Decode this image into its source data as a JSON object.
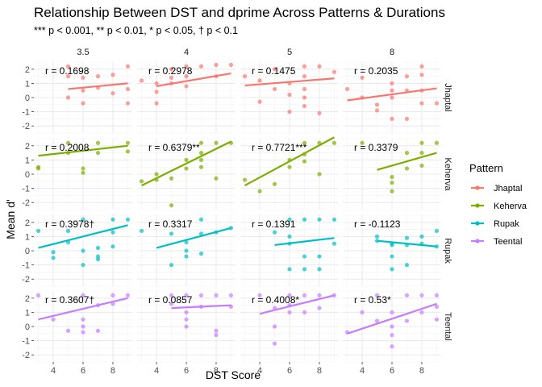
{
  "chart_data": {
    "type": "scatter",
    "title": "Relationship Between DST and dprime Across Patterns & Durations",
    "subtitle": "*** p < 0.001, ** p < 0.01, * p < 0.05, † p < 0.1",
    "xlabel": "DST Score",
    "ylabel": "Mean d'",
    "xlim": [
      2.7,
      9.3
    ],
    "ylim": [
      -2.5,
      2.5
    ],
    "x_ticks": [
      4,
      6,
      8
    ],
    "y_ticks": [
      -2,
      -1,
      0,
      1,
      2
    ],
    "columns": [
      "3.5",
      "4",
      "5",
      "8"
    ],
    "rows": [
      "Jhaptal",
      "Keherva",
      "Rupak",
      "Teental"
    ],
    "legend": {
      "title": "Pattern",
      "position": "right",
      "entries": [
        "Jhaptal",
        "Keherva",
        "Rupak",
        "Teental"
      ]
    },
    "colors": {
      "Jhaptal": "#F8766D",
      "Keherva": "#7CAE00",
      "Rupak": "#00BFC4",
      "Teental": "#C77CFF"
    },
    "panels": [
      {
        "row": "Jhaptal",
        "col": "3.5",
        "r_label": "r = 0.1698",
        "line": [
          [
            5,
            0.6
          ],
          [
            9,
            1.0
          ]
        ],
        "points": [
          [
            5,
            1.5
          ],
          [
            5,
            0.0
          ],
          [
            6,
            0.5
          ],
          [
            6,
            1.4
          ],
          [
            6,
            -0.4
          ],
          [
            7,
            1.5
          ],
          [
            7,
            0.7
          ],
          [
            8,
            1.6
          ],
          [
            8,
            0.3
          ],
          [
            9,
            2.2
          ],
          [
            9,
            0.6
          ],
          [
            9,
            -0.4
          ],
          [
            5,
            2.2
          ]
        ]
      },
      {
        "row": "Jhaptal",
        "col": "4",
        "r_label": "r = 0.2978",
        "line": [
          [
            4,
            0.8
          ],
          [
            9,
            1.7
          ]
        ],
        "points": [
          [
            3,
            1.2
          ],
          [
            4,
            1.0
          ],
          [
            4,
            0.4
          ],
          [
            4,
            -0.4
          ],
          [
            5,
            1.0
          ],
          [
            5,
            2.0
          ],
          [
            6,
            1.5
          ],
          [
            6,
            0.8
          ],
          [
            6,
            2.2
          ],
          [
            7,
            2.2
          ],
          [
            8,
            2.3
          ],
          [
            8,
            1.5
          ],
          [
            9,
            2.3
          ],
          [
            5,
            1.4
          ]
        ]
      },
      {
        "row": "Jhaptal",
        "col": "5",
        "r_label": "r = 0.1475",
        "line": [
          [
            3,
            0.85
          ],
          [
            9,
            1.35
          ]
        ],
        "points": [
          [
            3,
            1.5
          ],
          [
            4,
            1.2
          ],
          [
            4,
            -0.3
          ],
          [
            5,
            2.0
          ],
          [
            5,
            0.6
          ],
          [
            6,
            1.0
          ],
          [
            6,
            0.2
          ],
          [
            6,
            -1.0
          ],
          [
            7,
            0.6
          ],
          [
            7,
            1.5
          ],
          [
            7,
            0.0
          ],
          [
            7,
            -0.6
          ],
          [
            8,
            2.2
          ],
          [
            8,
            -1.1
          ],
          [
            9,
            1.8
          ],
          [
            7,
            2.2
          ]
        ]
      },
      {
        "row": "Jhaptal",
        "col": "8",
        "r_label": "r = 0.2035",
        "line": [
          [
            3,
            -0.2
          ],
          [
            9,
            0.65
          ]
        ],
        "points": [
          [
            3,
            0.6
          ],
          [
            4,
            1.4
          ],
          [
            4,
            0.0
          ],
          [
            5,
            -0.9
          ],
          [
            5,
            -0.5
          ],
          [
            6,
            1.0
          ],
          [
            6,
            0.5
          ],
          [
            6,
            0.0
          ],
          [
            6,
            -1.5
          ],
          [
            7,
            1.5
          ],
          [
            7,
            0.5
          ],
          [
            7,
            -1.5
          ],
          [
            8,
            1.6
          ],
          [
            8,
            0.5
          ],
          [
            8,
            -0.4
          ],
          [
            8,
            2.2
          ],
          [
            9,
            -0.4
          ]
        ]
      },
      {
        "row": "Keherva",
        "col": "3.5",
        "r_label": "r = 0.2008",
        "line": [
          [
            3,
            1.3
          ],
          [
            9,
            2.0
          ]
        ],
        "points": [
          [
            3,
            0.5
          ],
          [
            3,
            0.4
          ],
          [
            5,
            2.2
          ],
          [
            5,
            1.5
          ],
          [
            6,
            0.4
          ],
          [
            6,
            0.1
          ],
          [
            7,
            2.2
          ],
          [
            7,
            1.5
          ],
          [
            9,
            1.6
          ],
          [
            9,
            2.2
          ]
        ]
      },
      {
        "row": "Keherva",
        "col": "4",
        "r_label": "r = 0.6379**",
        "line": [
          [
            3,
            -0.8
          ],
          [
            9,
            2.3
          ]
        ],
        "points": [
          [
            3,
            -0.5
          ],
          [
            4,
            -0.4
          ],
          [
            4,
            0.0
          ],
          [
            5,
            -2.2
          ],
          [
            5,
            -0.3
          ],
          [
            6,
            0.4
          ],
          [
            6,
            1.0
          ],
          [
            7,
            1.5
          ],
          [
            7,
            1.0
          ],
          [
            7,
            0.5
          ],
          [
            8,
            2.2
          ],
          [
            8,
            -0.3
          ],
          [
            9,
            2.2
          ],
          [
            7,
            2.2
          ]
        ]
      },
      {
        "row": "Keherva",
        "col": "5",
        "r_label": "r = 0.7721***",
        "line": [
          [
            3,
            -0.8
          ],
          [
            9,
            2.6
          ]
        ],
        "points": [
          [
            3,
            -0.4
          ],
          [
            4,
            -1.2
          ],
          [
            5,
            -0.7
          ],
          [
            6,
            1.0
          ],
          [
            6,
            0.5
          ],
          [
            7,
            0.9
          ],
          [
            7,
            1.4
          ],
          [
            7,
            2.2
          ],
          [
            8,
            2.2
          ],
          [
            9,
            2.2
          ],
          [
            8,
            0.0
          ]
        ]
      },
      {
        "row": "Keherva",
        "col": "8",
        "r_label": "r = 0.3379",
        "line": [
          [
            5,
            0.3
          ],
          [
            9,
            1.5
          ]
        ],
        "points": [
          [
            4,
            2.2
          ],
          [
            6,
            -0.2
          ],
          [
            6,
            -0.6
          ],
          [
            6,
            -1.2
          ],
          [
            7,
            1.5
          ],
          [
            7,
            0.4
          ],
          [
            8,
            2.2
          ],
          [
            8,
            0.6
          ],
          [
            8,
            1.5
          ],
          [
            9,
            2.2
          ]
        ]
      },
      {
        "row": "Rupak",
        "col": "3.5",
        "r_label": "r = 0.3978†",
        "line": [
          [
            3,
            0.2
          ],
          [
            9,
            1.8
          ]
        ],
        "points": [
          [
            3,
            1.4
          ],
          [
            4,
            -0.1
          ],
          [
            4,
            -0.5
          ],
          [
            5,
            0.6
          ],
          [
            5,
            1.4
          ],
          [
            6,
            2.2
          ],
          [
            6,
            0.0
          ],
          [
            6,
            -1.0
          ],
          [
            7,
            0.2
          ],
          [
            7,
            -0.4
          ],
          [
            7,
            -0.6
          ],
          [
            8,
            1.3
          ],
          [
            8,
            0.3
          ],
          [
            9,
            2.2
          ],
          [
            8,
            2.2
          ]
        ]
      },
      {
        "row": "Rupak",
        "col": "4",
        "r_label": "r = 0.3317",
        "line": [
          [
            4,
            0.2
          ],
          [
            9,
            1.6
          ]
        ],
        "points": [
          [
            3,
            1.4
          ],
          [
            5,
            -1.0
          ],
          [
            5,
            1.2
          ],
          [
            6,
            0.6
          ],
          [
            6,
            0.0
          ],
          [
            6,
            -0.4
          ],
          [
            7,
            2.2
          ],
          [
            7,
            1.2
          ],
          [
            7,
            -0.2
          ],
          [
            8,
            1.3
          ],
          [
            9,
            1.6
          ]
        ]
      },
      {
        "row": "Rupak",
        "col": "5",
        "r_label": "r = 0.1391",
        "line": [
          [
            5,
            0.4
          ],
          [
            9,
            0.9
          ]
        ],
        "points": [
          [
            5,
            1.3
          ],
          [
            6,
            2.2
          ],
          [
            6,
            -1.3
          ],
          [
            6,
            1.0
          ],
          [
            6,
            0.5
          ],
          [
            7,
            2.2
          ],
          [
            7,
            -0.4
          ],
          [
            7,
            -1.3
          ],
          [
            8,
            2.2
          ],
          [
            8,
            -1.3
          ],
          [
            8,
            -0.4
          ],
          [
            9,
            2.2
          ],
          [
            9,
            0.5
          ]
        ]
      },
      {
        "row": "Rupak",
        "col": "8",
        "r_label": "r = -0.1123",
        "line": [
          [
            5,
            0.7
          ],
          [
            9,
            0.3
          ]
        ],
        "points": [
          [
            5,
            1.0
          ],
          [
            5,
            0.7
          ],
          [
            6,
            0.4
          ],
          [
            6,
            0.5
          ],
          [
            6,
            -0.4
          ],
          [
            6,
            -1.3
          ],
          [
            7,
            0.9
          ],
          [
            7,
            0.4
          ],
          [
            7,
            -1.0
          ],
          [
            8,
            1.0
          ],
          [
            8,
            0.5
          ],
          [
            9,
            1.4
          ],
          [
            9,
            0.3
          ]
        ]
      },
      {
        "row": "Teental",
        "col": "3.5",
        "r_label": "r = 0.3607†",
        "line": [
          [
            3,
            0.5
          ],
          [
            9,
            2.0
          ]
        ],
        "points": [
          [
            3,
            2.2
          ],
          [
            4,
            0.5
          ],
          [
            5,
            -0.3
          ],
          [
            6,
            0.5
          ],
          [
            6,
            0.0
          ],
          [
            6,
            -0.4
          ],
          [
            6,
            2.2
          ],
          [
            7,
            1.5
          ],
          [
            7,
            -0.3
          ],
          [
            8,
            2.2
          ],
          [
            9,
            2.2
          ],
          [
            8,
            1.6
          ]
        ]
      },
      {
        "row": "Teental",
        "col": "4",
        "r_label": "r = 0.0857",
        "line": [
          [
            5,
            1.3
          ],
          [
            9,
            1.5
          ]
        ],
        "points": [
          [
            5,
            2.2
          ],
          [
            6,
            1.0
          ],
          [
            6,
            0.5
          ],
          [
            6,
            0.0
          ],
          [
            6,
            2.2
          ],
          [
            7,
            1.4
          ],
          [
            7,
            2.2
          ],
          [
            8,
            2.2
          ],
          [
            8,
            -0.3
          ],
          [
            8,
            -0.6
          ],
          [
            9,
            1.4
          ],
          [
            9,
            2.2
          ],
          [
            5,
            1.6
          ]
        ]
      },
      {
        "row": "Teental",
        "col": "5",
        "r_label": "r = 0.4008*",
        "line": [
          [
            4,
            0.9
          ],
          [
            9,
            2.2
          ]
        ],
        "points": [
          [
            4,
            2.2
          ],
          [
            5,
            -1.2
          ],
          [
            5,
            0.0
          ],
          [
            6,
            2.2
          ],
          [
            6,
            1.5
          ],
          [
            6,
            1.0
          ],
          [
            7,
            2.2
          ],
          [
            7,
            1.0
          ],
          [
            8,
            2.2
          ],
          [
            8,
            1.3
          ],
          [
            9,
            2.2
          ],
          [
            5,
            1.3
          ]
        ]
      },
      {
        "row": "Teental",
        "col": "8",
        "r_label": "r = 0.53*",
        "line": [
          [
            3,
            -0.5
          ],
          [
            9,
            1.6
          ]
        ],
        "points": [
          [
            3,
            -0.4
          ],
          [
            4,
            1.0
          ],
          [
            5,
            2.2
          ],
          [
            5,
            0.4
          ],
          [
            6,
            1.0
          ],
          [
            6,
            0.0
          ],
          [
            6,
            -0.6
          ],
          [
            6,
            -1.4
          ],
          [
            7,
            2.2
          ],
          [
            7,
            0.4
          ],
          [
            8,
            2.2
          ],
          [
            8,
            1.0
          ],
          [
            9,
            2.2
          ],
          [
            9,
            0.5
          ],
          [
            9,
            1.4
          ]
        ]
      }
    ]
  }
}
